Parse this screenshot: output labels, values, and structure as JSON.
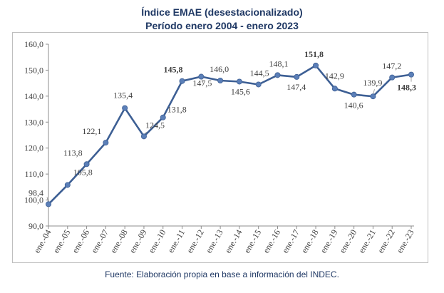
{
  "chart_data": {
    "type": "line",
    "title": "Índice EMAE (desestacionalizado)",
    "subtitle": "Período enero 2004 - enero 2023",
    "xlabel": "",
    "ylabel": "",
    "ylim": [
      90,
      160
    ],
    "ytick_values": [
      90,
      100,
      110,
      120,
      130,
      140,
      150,
      160
    ],
    "ytick_labels": [
      "90,0",
      "100,0",
      "110,0",
      "120,0",
      "130,0",
      "140,0",
      "150,0",
      "160,0"
    ],
    "grid": false,
    "line_color": "#3d5f94",
    "marker_color": "#5b7fb8",
    "categories": [
      "ene.-04",
      "ene.-05",
      "ene.-06",
      "ene.-07",
      "ene.-08",
      "ene.-09",
      "ene.-10",
      "ene.-11",
      "ene.-12",
      "ene.-13",
      "ene.-14",
      "ene.-15",
      "ene.-16",
      "ene.-17",
      "ene.-18",
      "ene.-19",
      "ene.-20",
      "ene.-21",
      "ene.-22",
      "ene.-23"
    ],
    "values": [
      98.4,
      105.8,
      113.8,
      122.1,
      135.4,
      124.5,
      131.8,
      145.8,
      147.5,
      146.0,
      145.6,
      144.5,
      148.1,
      147.4,
      151.8,
      142.9,
      140.6,
      139.9,
      147.2,
      148.3
    ],
    "data_labels": [
      "98,4",
      "105,8",
      "113,8",
      "122,1",
      "135,4",
      "124,5",
      "131,8",
      "145,8",
      "147,5",
      "146,0",
      "145,6",
      "144,5",
      "148,1",
      "147,4",
      "151,8",
      "142,9",
      "140,6",
      "139,9",
      "147,2",
      "148,3"
    ],
    "bold_labels": [
      "145,8",
      "151,8",
      "148,3"
    ]
  },
  "source_note": "Fuente: Elaboración propia en base a información del INDEC."
}
